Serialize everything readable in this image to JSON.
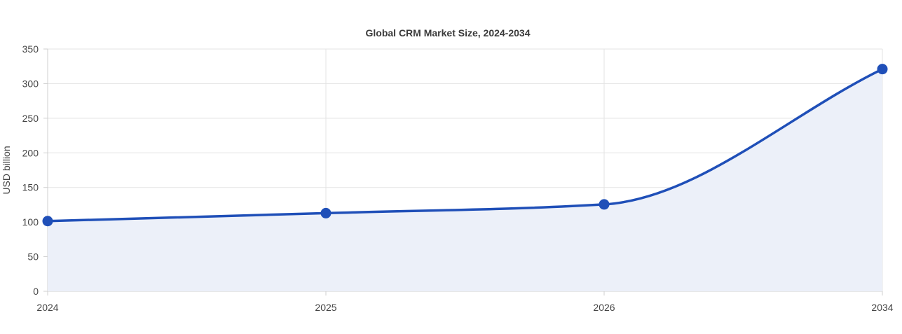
{
  "chart_data": {
    "type": "area",
    "title": "Global CRM Market Size, 2024-2034",
    "xlabel": "",
    "ylabel": "USD billion",
    "categories": [
      "2024",
      "2025",
      "2026",
      "2034"
    ],
    "series": [
      {
        "values": [
          101.4,
          112.9,
          125.5,
          321.0
        ]
      }
    ],
    "ylim": [
      0,
      350
    ],
    "yticks": [
      "0",
      "50",
      "100",
      "150",
      "200",
      "250",
      "300",
      "350"
    ],
    "grid": true,
    "legend": "none",
    "colors": {
      "line": "#1f4fb8",
      "fill": "#ecf0f9",
      "point": "#1f4fb8"
    }
  }
}
